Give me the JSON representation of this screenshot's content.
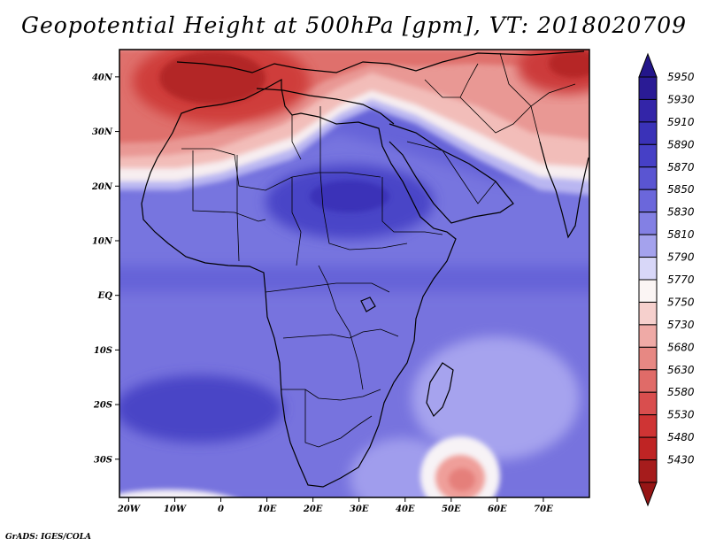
{
  "title": "Geopotential Height at 500hPa [gpm], VT: 2018020709",
  "credit": "GrADS: IGES/COLA",
  "map": {
    "lon_range": [
      -22,
      80
    ],
    "lat_range": [
      -37,
      45
    ],
    "lat_ticks": [
      {
        "value": 40,
        "label": "40N"
      },
      {
        "value": 30,
        "label": "30N"
      },
      {
        "value": 20,
        "label": "20N"
      },
      {
        "value": 10,
        "label": "10N"
      },
      {
        "value": 0,
        "label": "EQ"
      },
      {
        "value": -10,
        "label": "10S"
      },
      {
        "value": -20,
        "label": "20S"
      },
      {
        "value": -30,
        "label": "30S"
      }
    ],
    "lon_ticks": [
      {
        "value": -20,
        "label": "20W"
      },
      {
        "value": -10,
        "label": "10W"
      },
      {
        "value": 0,
        "label": "0"
      },
      {
        "value": 10,
        "label": "10E"
      },
      {
        "value": 20,
        "label": "20E"
      },
      {
        "value": 30,
        "label": "30E"
      },
      {
        "value": 40,
        "label": "40E"
      },
      {
        "value": 50,
        "label": "50E"
      },
      {
        "value": 60,
        "label": "60E"
      },
      {
        "value": 70,
        "label": "70E"
      }
    ]
  },
  "colorbar": {
    "levels": [
      {
        "value": "5950",
        "color": "#2a1b95"
      },
      {
        "value": "5930",
        "color": "#3325a8"
      },
      {
        "value": "5910",
        "color": "#3a32b8"
      },
      {
        "value": "5890",
        "color": "#4640c6"
      },
      {
        "value": "5870",
        "color": "#5a55d2"
      },
      {
        "value": "5850",
        "color": "#6b67db"
      },
      {
        "value": "5830",
        "color": "#8380e4"
      },
      {
        "value": "5810",
        "color": "#a4a2ed"
      },
      {
        "value": "5790",
        "color": "#d8d7f8"
      },
      {
        "value": "5770",
        "color": "#fbf5f4"
      },
      {
        "value": "5750",
        "color": "#f6d0cd"
      },
      {
        "value": "5730",
        "color": "#efaaa6"
      },
      {
        "value": "5680",
        "color": "#e78883"
      },
      {
        "value": "5630",
        "color": "#e06b68"
      },
      {
        "value": "5580",
        "color": "#d94e4e"
      },
      {
        "value": "5530",
        "color": "#cf3434"
      },
      {
        "value": "5480",
        "color": "#bf2424"
      },
      {
        "value": "5430",
        "color": "#a61c1c"
      }
    ],
    "top_arrow_color": "#23168a",
    "bottom_arrow_color": "#961515"
  }
}
